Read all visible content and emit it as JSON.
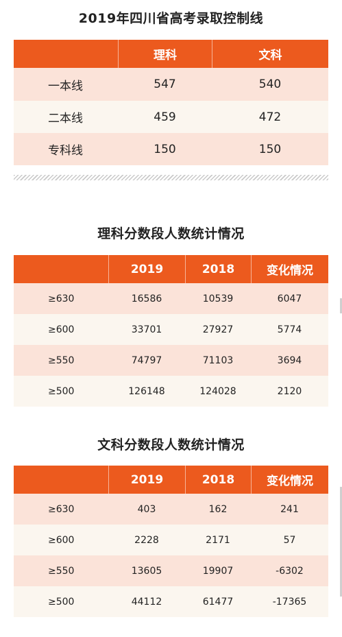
{
  "cutoff": {
    "title": "2019年四川省高考录取控制线",
    "headers": [
      "",
      "理科",
      "文科"
    ],
    "rows": [
      {
        "label": "一本线",
        "science": "547",
        "arts": "540"
      },
      {
        "label": "二本线",
        "science": "459",
        "arts": "472"
      },
      {
        "label": "专科线",
        "science": "150",
        "arts": "150"
      }
    ]
  },
  "science": {
    "title": "理科分数段人数统计情况",
    "headers": [
      "",
      "2019",
      "2018",
      "变化情况"
    ],
    "rows": [
      {
        "range": "≥630",
        "y2019": "16586",
        "y2018": "10539",
        "change": "6047"
      },
      {
        "range": "≥600",
        "y2019": "33701",
        "y2018": "27927",
        "change": "5774"
      },
      {
        "range": "≥550",
        "y2019": "74797",
        "y2018": "71103",
        "change": "3694"
      },
      {
        "range": "≥500",
        "y2019": "126148",
        "y2018": "124028",
        "change": "2120"
      }
    ]
  },
  "arts": {
    "title": "文科分数段人数统计情况",
    "headers": [
      "",
      "2019",
      "2018",
      "变化情况"
    ],
    "rows": [
      {
        "range": "≥630",
        "y2019": "403",
        "y2018": "162",
        "change": "241"
      },
      {
        "range": "≥600",
        "y2019": "2228",
        "y2018": "2171",
        "change": "57"
      },
      {
        "range": "≥550",
        "y2019": "13605",
        "y2018": "19907",
        "change": "-6302"
      },
      {
        "range": "≥500",
        "y2019": "44112",
        "y2018": "61477",
        "change": "-17365"
      }
    ]
  },
  "colors": {
    "header_orange": "#ec5a1e",
    "row_light_orange": "#fbe3d9",
    "row_cream": "#fbf6ef"
  }
}
